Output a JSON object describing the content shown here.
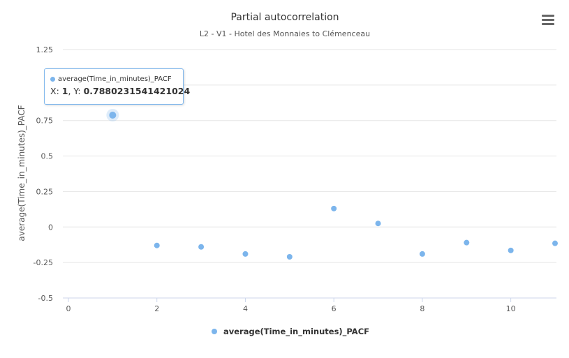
{
  "chart_data": {
    "type": "scatter",
    "title": "Partial autocorrelation",
    "subtitle": "L2 - V1 - Hotel des Monnaies to Clémenceau",
    "xlabel": "",
    "ylabel": "average(Time_in_minutes)_PACF",
    "xlim": [
      0,
      11
    ],
    "ylim": [
      -0.5,
      1.25
    ],
    "x_ticks": [
      0,
      2,
      4,
      6,
      8,
      10
    ],
    "y_ticks": [
      -0.5,
      -0.25,
      0,
      0.25,
      0.5,
      0.75,
      1.25
    ],
    "grid": true,
    "legend_position": "bottom-center",
    "series": [
      {
        "name": "average(Time_in_minutes)_PACF",
        "color": "#7cb5ec",
        "points": [
          {
            "x": 1,
            "y": 0.7880231541421024
          },
          {
            "x": 2,
            "y": -0.13
          },
          {
            "x": 3,
            "y": -0.14
          },
          {
            "x": 4,
            "y": -0.19
          },
          {
            "x": 5,
            "y": -0.21
          },
          {
            "x": 6,
            "y": 0.13
          },
          {
            "x": 7,
            "y": 0.025
          },
          {
            "x": 8,
            "y": -0.19
          },
          {
            "x": 9,
            "y": -0.11
          },
          {
            "x": 10,
            "y": -0.165
          },
          {
            "x": 11,
            "y": -0.115
          }
        ]
      }
    ]
  },
  "tooltip": {
    "series_name": "average(Time_in_minutes)_PACF",
    "x_prefix": "X: ",
    "x_value": "1",
    "y_prefix": ", Y: ",
    "y_value": "0.7880231541421024"
  },
  "menu_icon": "hamburger-menu-icon"
}
